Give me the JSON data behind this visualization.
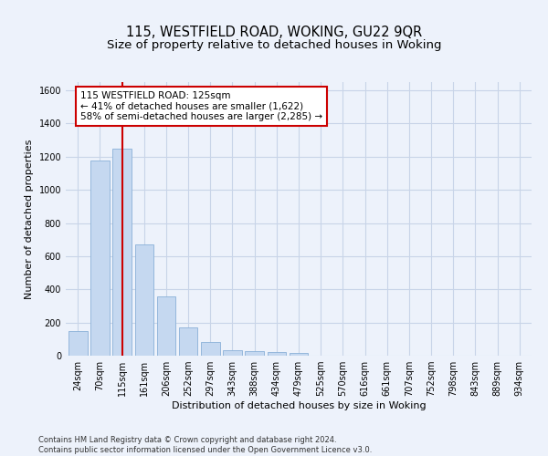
{
  "title": "115, WESTFIELD ROAD, WOKING, GU22 9QR",
  "subtitle": "Size of property relative to detached houses in Woking",
  "xlabel": "Distribution of detached houses by size in Woking",
  "ylabel": "Number of detached properties",
  "footer_line1": "Contains HM Land Registry data © Crown copyright and database right 2024.",
  "footer_line2": "Contains public sector information licensed under the Open Government Licence v3.0.",
  "bar_labels": [
    "24sqm",
    "70sqm",
    "115sqm",
    "161sqm",
    "206sqm",
    "252sqm",
    "297sqm",
    "343sqm",
    "388sqm",
    "434sqm",
    "479sqm",
    "525sqm",
    "570sqm",
    "616sqm",
    "661sqm",
    "707sqm",
    "752sqm",
    "798sqm",
    "843sqm",
    "889sqm",
    "934sqm"
  ],
  "bar_values": [
    150,
    1175,
    1250,
    670,
    360,
    170,
    80,
    35,
    25,
    20,
    15,
    0,
    0,
    0,
    0,
    0,
    0,
    0,
    0,
    0,
    0
  ],
  "bar_color": "#c5d8f0",
  "bar_edge_color": "#8ab0d8",
  "red_line_x": 2,
  "annotation_line1": "115 WESTFIELD ROAD: 125sqm",
  "annotation_line2": "← 41% of detached houses are smaller (1,622)",
  "annotation_line3": "58% of semi-detached houses are larger (2,285) →",
  "annotation_box_color": "#ffffff",
  "annotation_border_color": "#cc0000",
  "ylim": [
    0,
    1650
  ],
  "yticks": [
    0,
    200,
    400,
    600,
    800,
    1000,
    1200,
    1400,
    1600
  ],
  "grid_color": "#c8d4e8",
  "background_color": "#edf2fb",
  "title_fontsize": 10.5,
  "subtitle_fontsize": 9.5,
  "axis_label_fontsize": 8,
  "tick_fontsize": 7,
  "annotation_fontsize": 7.5,
  "footer_fontsize": 6
}
